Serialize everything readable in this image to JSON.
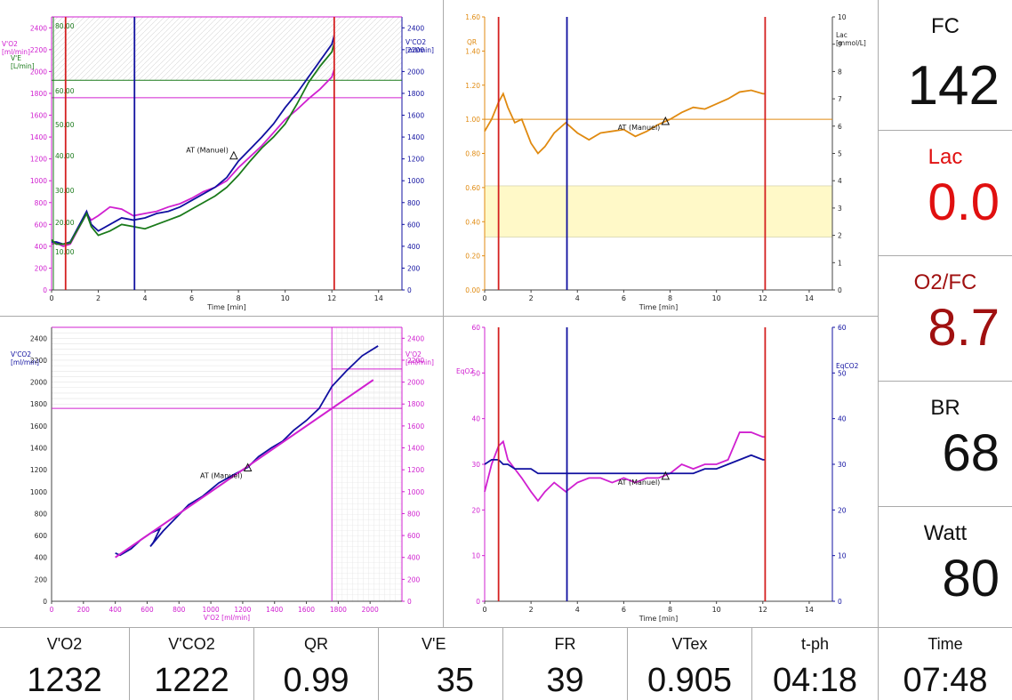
{
  "colors": {
    "red": "#d42020",
    "darkred": "#a01010",
    "blue": "#1010a0",
    "magenta": "#d020d0",
    "green": "#1a7a1a",
    "orange": "#e08a10",
    "yellowband": "#fff9c8",
    "grid": "#c8c8c8"
  },
  "side": [
    {
      "label": "FC",
      "value": "142",
      "color": "#111111"
    },
    {
      "label": "Lac",
      "value": "0.0",
      "color": "#e01010"
    },
    {
      "label": "O2/FC",
      "value": "8.7",
      "color": "#a01010"
    },
    {
      "label": "BR",
      "value": "68",
      "color": "#111111"
    },
    {
      "label": "Watt",
      "value": "80",
      "color": "#111111"
    }
  ],
  "bottom": [
    {
      "label": "V'O2",
      "value": "1232"
    },
    {
      "label": "V'CO2",
      "value": "1222"
    },
    {
      "label": "QR",
      "value": "0.99"
    },
    {
      "label": "V'E",
      "value": "35"
    },
    {
      "label": "FR",
      "value": "39"
    },
    {
      "label": "VTex",
      "value": "0.905"
    },
    {
      "label": "t-ph",
      "value": "04:18"
    },
    {
      "label": "Time",
      "value": "07:48"
    }
  ],
  "chart_data": [
    {
      "type": "line",
      "xlabel": "Time  [min]",
      "xlim": [
        0,
        15
      ],
      "xticks": [
        "0",
        "2",
        "4",
        "6",
        "8",
        "10",
        "12",
        "14"
      ],
      "y_left_label": [
        "V'O2",
        "[ml/min]"
      ],
      "y_left2_label": [
        "V'E",
        "[L/min]"
      ],
      "y_right_label": [
        "V'CO2",
        "[ml/min]"
      ],
      "ylim": [
        0,
        2500
      ],
      "yticks": [
        "0",
        "200",
        "400",
        "600",
        "800",
        "1000",
        "1200",
        "1400",
        "1600",
        "1800",
        "2000",
        "2200",
        "2400"
      ],
      "ve_ticks": [
        "10.00",
        "20.00",
        "30.00",
        "40.00",
        "50.00",
        "60.00",
        "80.00"
      ],
      "annotation": "AT (Manuel)",
      "at": [
        7.8,
        1232
      ],
      "markers_red": [
        0.6,
        12.1
      ],
      "marker_blue": 3.55,
      "hlines": [
        {
          "y": 1920,
          "color": "green"
        },
        {
          "y": 1760,
          "color": "magenta"
        },
        {
          "y": 2500,
          "color": "magenta"
        }
      ],
      "series": [
        {
          "name": "V'O2",
          "color": "magenta",
          "x": [
            0,
            0.2,
            0.5,
            0.8,
            1.0,
            1.3,
            1.5,
            1.7,
            2.0,
            2.5,
            3.0,
            3.5,
            4.0,
            4.5,
            5.0,
            5.5,
            6.0,
            6.5,
            7.0,
            7.5,
            8.0,
            8.5,
            9.0,
            9.5,
            10.0,
            10.5,
            11.0,
            11.5,
            12.0,
            12.1
          ],
          "y": [
            420,
            430,
            400,
            420,
            500,
            620,
            700,
            640,
            680,
            760,
            740,
            680,
            700,
            720,
            760,
            790,
            840,
            900,
            940,
            1000,
            1120,
            1220,
            1320,
            1440,
            1560,
            1650,
            1750,
            1840,
            1950,
            2020
          ]
        },
        {
          "name": "V'CO2",
          "color": "blue",
          "x": [
            0,
            0.2,
            0.5,
            0.8,
            1.0,
            1.3,
            1.5,
            1.7,
            2.0,
            2.5,
            3.0,
            3.5,
            4.0,
            4.5,
            5.0,
            5.5,
            6.0,
            6.5,
            7.0,
            7.5,
            8.0,
            8.5,
            9.0,
            9.5,
            10.0,
            10.5,
            11.0,
            11.5,
            12.0,
            12.1
          ],
          "y": [
            440,
            440,
            420,
            440,
            520,
            640,
            720,
            600,
            540,
            600,
            660,
            640,
            660,
            700,
            720,
            760,
            820,
            880,
            940,
            1030,
            1180,
            1290,
            1400,
            1520,
            1670,
            1800,
            1950,
            2100,
            2250,
            2330
          ]
        },
        {
          "name": "V'E",
          "color": "green",
          "x": [
            0,
            0.2,
            0.5,
            0.8,
            1.0,
            1.3,
            1.5,
            1.7,
            2.0,
            2.5,
            3.0,
            3.5,
            4.0,
            4.5,
            5.0,
            5.5,
            6.0,
            6.5,
            7.0,
            7.5,
            8.0,
            8.5,
            9.0,
            9.5,
            10.0,
            10.5,
            11.0,
            11.5,
            12.0,
            12.1
          ],
          "y": [
            460,
            420,
            420,
            430,
            510,
            620,
            700,
            580,
            500,
            540,
            600,
            580,
            560,
            600,
            640,
            680,
            740,
            800,
            860,
            940,
            1050,
            1180,
            1300,
            1400,
            1520,
            1700,
            1900,
            2050,
            2180,
            2260
          ]
        }
      ]
    },
    {
      "type": "line",
      "xlabel": "Time  [min]",
      "xlim": [
        0,
        15
      ],
      "xticks": [
        "0",
        "2",
        "4",
        "6",
        "8",
        "10",
        "12",
        "14"
      ],
      "y_left_label": [
        "QR"
      ],
      "y_right_label": [
        "Lac",
        "[mmol/L]"
      ],
      "ylim": [
        0,
        1.6
      ],
      "yticks": [
        "0.00",
        "0.20",
        "0.40",
        "0.60",
        "0.80",
        "1.00",
        "1.20",
        "1.40",
        "1.60"
      ],
      "y2ticks": [
        "0",
        "1",
        "2",
        "3",
        "4",
        "5",
        "6",
        "7",
        "8",
        "9",
        "10"
      ],
      "annotation": "AT (Manuel)",
      "at": [
        7.8,
        0.99
      ],
      "band": [
        0.31,
        0.61
      ],
      "hline": 1.0,
      "markers_red": [
        0.6,
        12.1
      ],
      "marker_blue": 3.55,
      "series": [
        {
          "name": "QR",
          "color": "orange",
          "x": [
            0,
            0.3,
            0.6,
            0.8,
            1.0,
            1.3,
            1.6,
            2.0,
            2.3,
            2.6,
            3.0,
            3.5,
            4.0,
            4.5,
            5.0,
            5.5,
            6.0,
            6.5,
            7.0,
            7.5,
            8.0,
            8.5,
            9.0,
            9.5,
            10.0,
            10.5,
            11.0,
            11.5,
            12.0,
            12.1
          ],
          "y": [
            0.93,
            1.0,
            1.1,
            1.15,
            1.07,
            0.98,
            1.0,
            0.86,
            0.8,
            0.84,
            0.92,
            0.98,
            0.92,
            0.88,
            0.92,
            0.93,
            0.94,
            0.9,
            0.93,
            0.97,
            1.0,
            1.04,
            1.07,
            1.06,
            1.09,
            1.12,
            1.16,
            1.17,
            1.15,
            1.15
          ]
        }
      ]
    },
    {
      "type": "scatter",
      "xlabel": "V'O2  [ml/min]",
      "xlim": [
        0,
        2200
      ],
      "xticks": [
        "0",
        "200",
        "400",
        "600",
        "800",
        "1000",
        "1200",
        "1400",
        "1600",
        "1800",
        "2000"
      ],
      "y_left_label": [
        "V'CO2",
        "[ml/min]"
      ],
      "y_right_label": [
        "V'O2",
        "[ml/min]"
      ],
      "ylim": [
        0,
        2500
      ],
      "yticks": [
        "0",
        "200",
        "400",
        "600",
        "800",
        "1000",
        "1200",
        "1400",
        "1600",
        "1800",
        "2000",
        "2200",
        "2400"
      ],
      "annotation": "AT (Manuel)",
      "at": [
        1232,
        1222
      ],
      "vline": 1760,
      "hline": 1760,
      "series": [
        {
          "name": "V'CO2",
          "color": "blue",
          "x": [
            400,
            430,
            500,
            560,
            620,
            680,
            640,
            620,
            700,
            780,
            860,
            950,
            1050,
            1150,
            1232,
            1300,
            1380,
            1450,
            1520,
            1600,
            1680,
            1760,
            1850,
            1950,
            2050
          ],
          "y": [
            440,
            420,
            480,
            560,
            620,
            660,
            540,
            500,
            640,
            760,
            880,
            960,
            1080,
            1160,
            1222,
            1320,
            1400,
            1460,
            1560,
            1650,
            1760,
            1960,
            2100,
            2240,
            2330
          ]
        },
        {
          "name": "fit",
          "color": "magenta",
          "x": [
            400,
            2020
          ],
          "y": [
            400,
            2020
          ]
        }
      ]
    },
    {
      "type": "line",
      "xlabel": "Time  [min]",
      "xlim": [
        0,
        15
      ],
      "xticks": [
        "0",
        "2",
        "4",
        "6",
        "8",
        "10",
        "12",
        "14"
      ],
      "y_left_label": [
        "EqO2"
      ],
      "y_right_label": [
        "EqCO2"
      ],
      "ylim": [
        0,
        60
      ],
      "yticks": [
        "0",
        "10",
        "20",
        "30",
        "40",
        "50",
        "60"
      ],
      "annotation": "AT (Manuel)",
      "at": [
        7.8,
        27.5
      ],
      "markers_red": [
        0.6,
        12.1
      ],
      "marker_blue": 3.55,
      "series": [
        {
          "name": "EqO2",
          "color": "magenta",
          "x": [
            0,
            0.3,
            0.6,
            0.8,
            1.0,
            1.3,
            1.6,
            2.0,
            2.3,
            2.6,
            3.0,
            3.5,
            4.0,
            4.5,
            5.0,
            5.5,
            6.0,
            6.5,
            7.0,
            7.5,
            8.0,
            8.5,
            9.0,
            9.5,
            10.0,
            10.5,
            11.0,
            11.5,
            12.0,
            12.1
          ],
          "y": [
            24,
            30,
            34,
            35,
            31,
            29,
            27,
            24,
            22,
            24,
            26,
            24,
            26,
            27,
            27,
            26,
            27,
            26,
            27,
            27,
            28,
            30,
            29,
            30,
            30,
            31,
            37,
            37,
            36,
            36
          ]
        },
        {
          "name": "EqCO2",
          "color": "blue",
          "x": [
            0,
            0.3,
            0.6,
            0.8,
            1.0,
            1.3,
            1.6,
            2.0,
            2.3,
            2.6,
            3.0,
            3.5,
            4.0,
            4.5,
            5.0,
            5.5,
            6.0,
            6.5,
            7.0,
            7.5,
            8.0,
            8.5,
            9.0,
            9.5,
            10.0,
            10.5,
            11.0,
            11.5,
            12.0,
            12.1
          ],
          "y": [
            30,
            31,
            31,
            30,
            30,
            29,
            29,
            29,
            28,
            28,
            28,
            28,
            28,
            28,
            28,
            28,
            28,
            28,
            28,
            28,
            28,
            28,
            28,
            29,
            29,
            30,
            31,
            32,
            31,
            31
          ]
        }
      ]
    }
  ]
}
